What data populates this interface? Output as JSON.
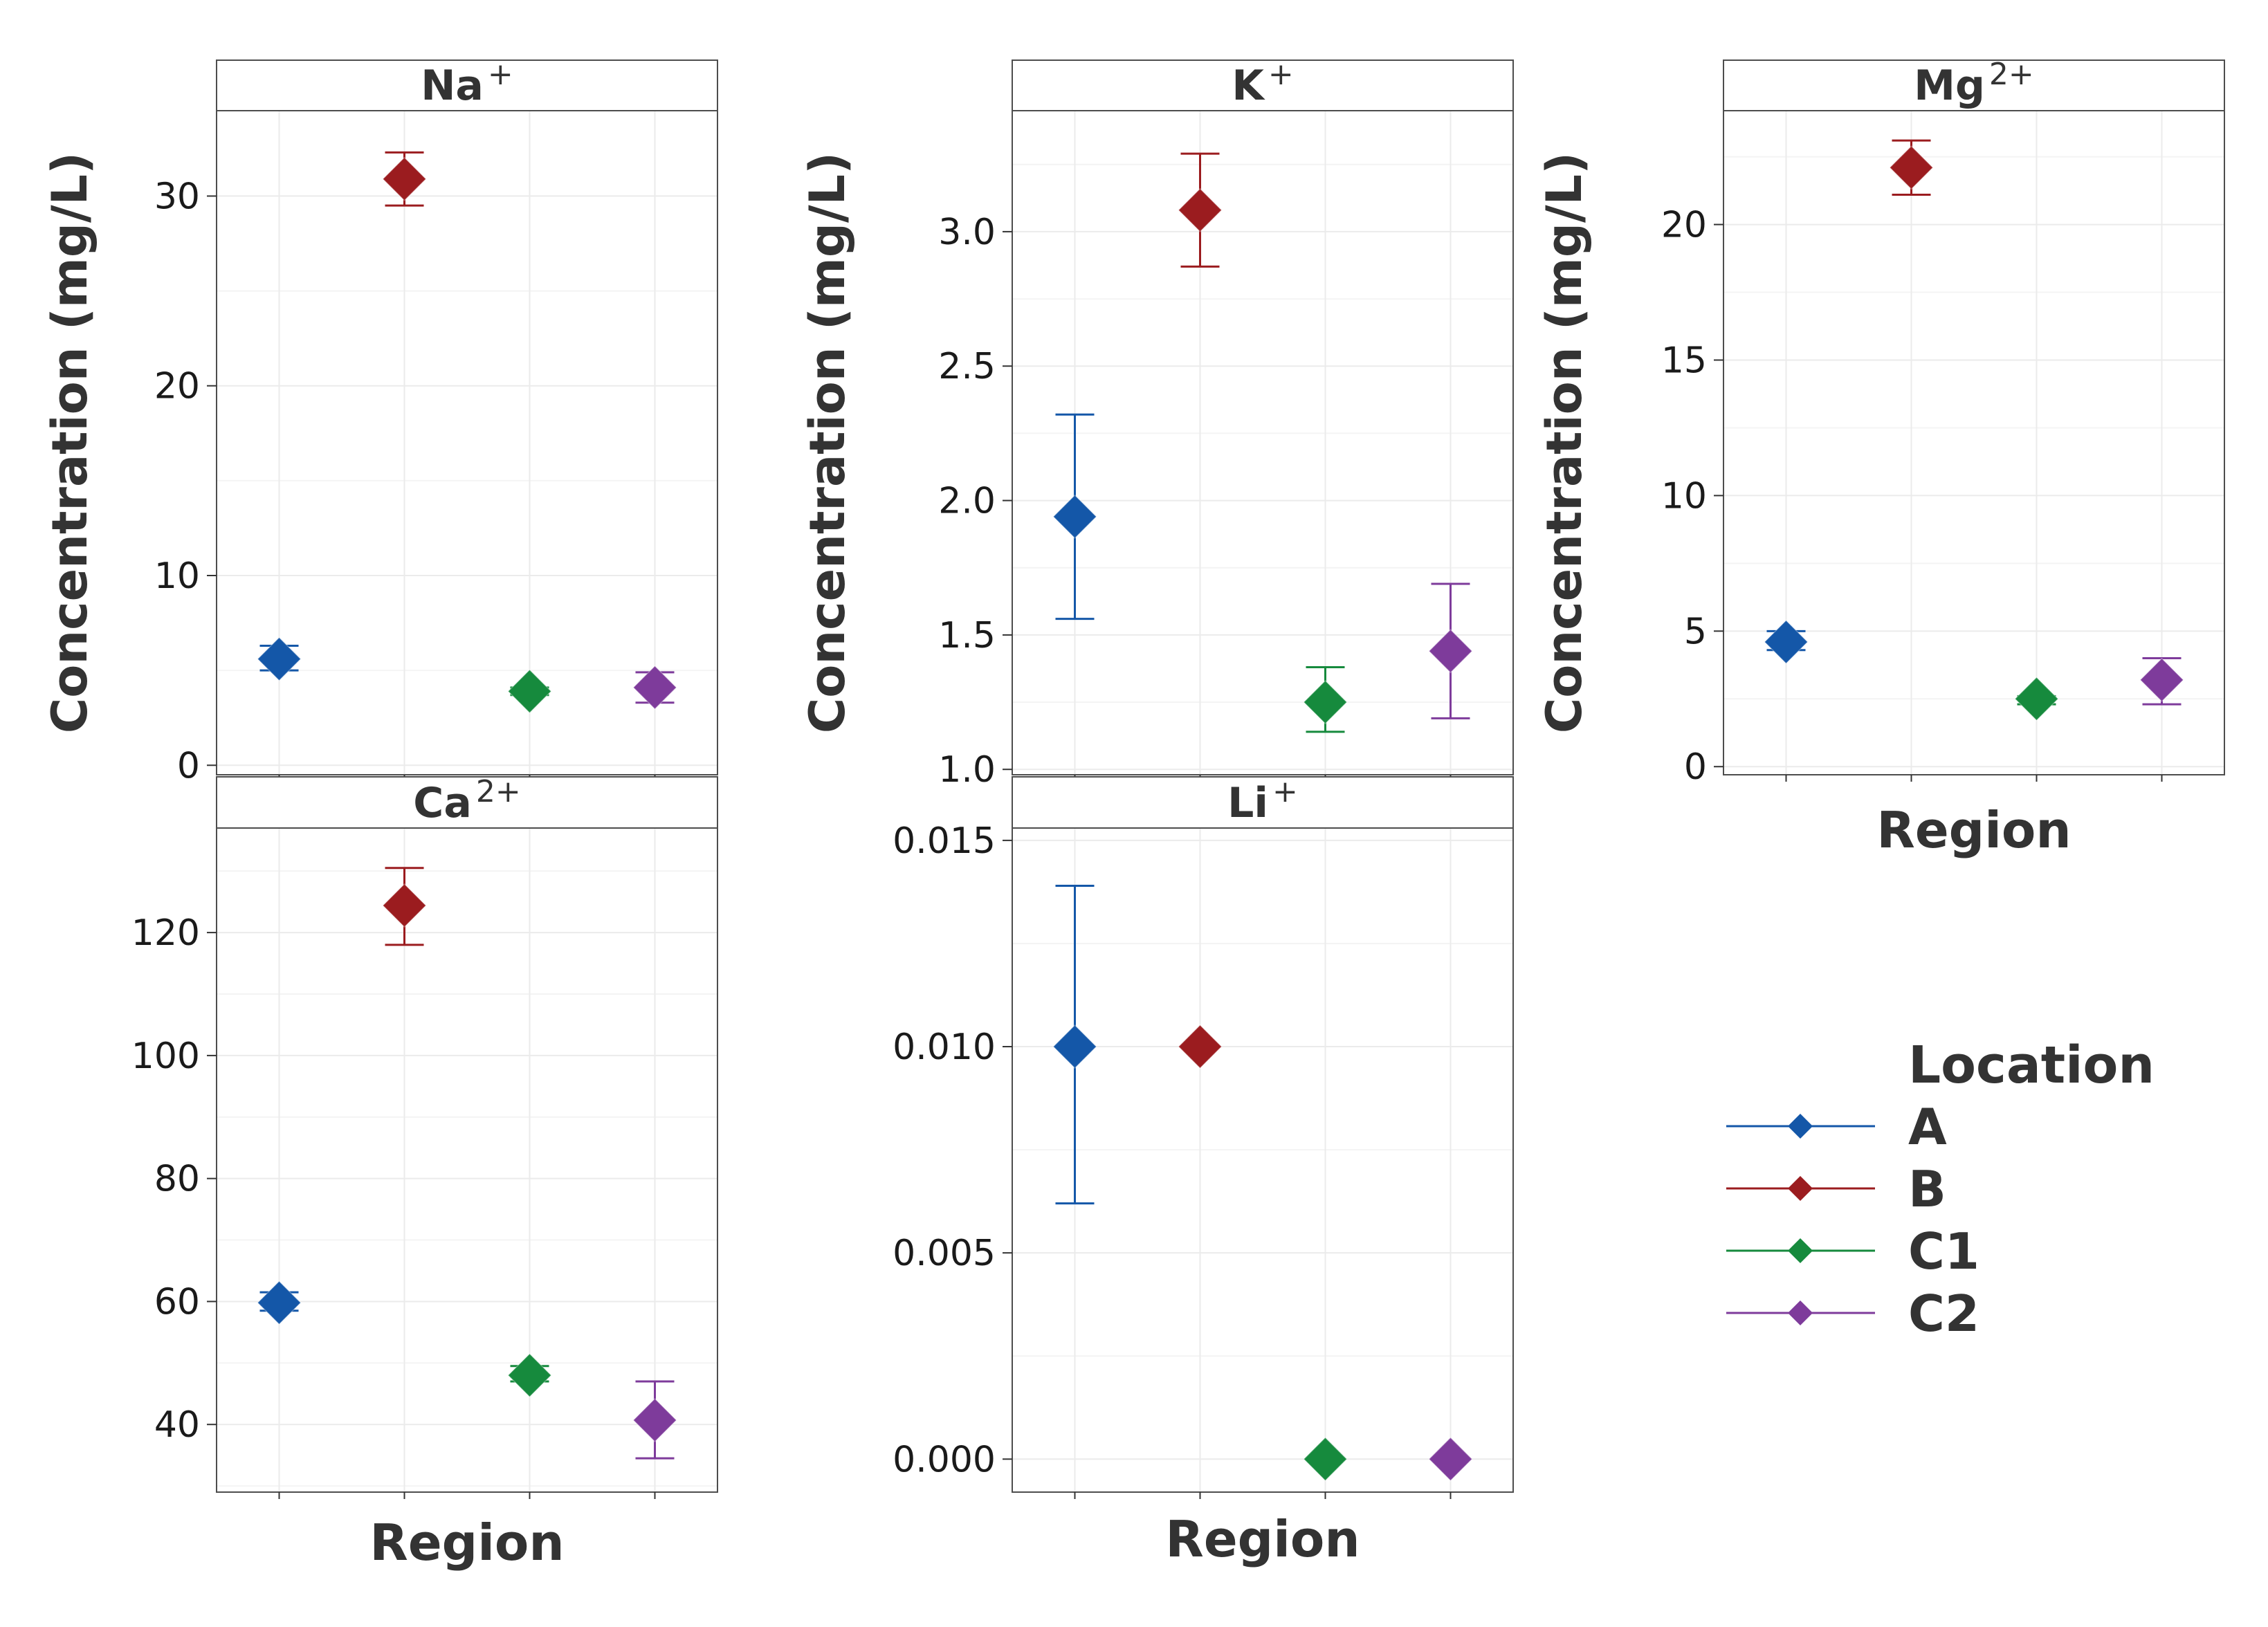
{
  "chart_data": [
    {
      "type": "scatter",
      "panel": "Na",
      "title": "Na",
      "title_sup": "+",
      "xlabel": "",
      "ylabel": "Concentration (mg/L)",
      "categories": [
        "A",
        "B",
        "C1",
        "C2"
      ],
      "ylim": [
        -0.5,
        34.5
      ],
      "ticks": [
        0,
        10,
        20,
        30
      ],
      "tick_labels": [
        "0",
        "10",
        "20",
        "30"
      ],
      "values": [
        5.6,
        30.9,
        3.9,
        4.1
      ],
      "err_low": [
        5.0,
        29.5,
        3.7,
        3.3
      ],
      "err_high": [
        6.3,
        32.3,
        4.1,
        4.9
      ]
    },
    {
      "type": "scatter",
      "panel": "K",
      "title": "K",
      "title_sup": "+",
      "xlabel": "",
      "ylabel": "Concentration (mg/L)",
      "categories": [
        "A",
        "B",
        "C1",
        "C2"
      ],
      "ylim": [
        0.98,
        3.45
      ],
      "ticks": [
        1.0,
        1.5,
        2.0,
        2.5,
        3.0
      ],
      "tick_labels": [
        "1.0",
        "1.5",
        "2.0",
        "2.5",
        "3.0"
      ],
      "values": [
        1.94,
        3.08,
        1.25,
        1.44
      ],
      "err_low": [
        1.56,
        2.87,
        1.14,
        1.19
      ],
      "err_high": [
        2.32,
        3.29,
        1.38,
        1.69
      ]
    },
    {
      "type": "scatter",
      "panel": "Mg",
      "title": "Mg",
      "title_sup": "2+",
      "xlabel": "Region",
      "ylabel": "Concentration (mg/L)",
      "categories": [
        "A",
        "B",
        "C1",
        "C2"
      ],
      "ylim": [
        -0.3,
        24.2
      ],
      "ticks": [
        0,
        5,
        10,
        15,
        20
      ],
      "tick_labels": [
        "0",
        "5",
        "10",
        "15",
        "20"
      ],
      "values": [
        4.6,
        22.1,
        2.5,
        3.2
      ],
      "err_low": [
        4.3,
        21.1,
        2.3,
        2.3
      ],
      "err_high": [
        5.0,
        23.1,
        2.6,
        4.0
      ]
    },
    {
      "type": "scatter",
      "panel": "Ca",
      "title": "Ca",
      "title_sup": "2+",
      "xlabel": "Region",
      "ylabel": "",
      "categories": [
        "A",
        "B",
        "C1",
        "C2"
      ],
      "ylim": [
        29,
        137
      ],
      "ticks": [
        40,
        60,
        80,
        100,
        120
      ],
      "tick_labels": [
        "40",
        "60",
        "80",
        "100",
        "120"
      ],
      "values": [
        59.8,
        124.4,
        48.0,
        40.7
      ],
      "err_low": [
        58.5,
        118.0,
        47.0,
        34.5
      ],
      "err_high": [
        61.5,
        130.5,
        49.5,
        47.0
      ]
    },
    {
      "type": "scatter",
      "panel": "Li",
      "title": "Li",
      "title_sup": "+",
      "xlabel": "Region",
      "ylabel": "",
      "categories": [
        "A",
        "B",
        "C1",
        "C2"
      ],
      "ylim": [
        -0.0008,
        0.0153
      ],
      "ticks": [
        0.0,
        0.005,
        0.01,
        0.015
      ],
      "tick_labels": [
        "0.000",
        "0.005",
        "0.010",
        "0.015"
      ],
      "values": [
        0.01,
        0.01,
        0.0,
        0.0
      ],
      "err_low": [
        0.0062,
        0.01,
        0.0,
        0.0
      ],
      "err_high": [
        0.0139,
        0.01,
        0.0,
        0.0
      ]
    }
  ],
  "legend": {
    "title": "Location",
    "position": "right",
    "items": [
      {
        "name": "A",
        "color": "#1457A8"
      },
      {
        "name": "B",
        "color": "#9B1C1F"
      },
      {
        "name": "C1",
        "color": "#168A3D"
      },
      {
        "name": "C2",
        "color": "#7E3B9B"
      }
    ]
  }
}
